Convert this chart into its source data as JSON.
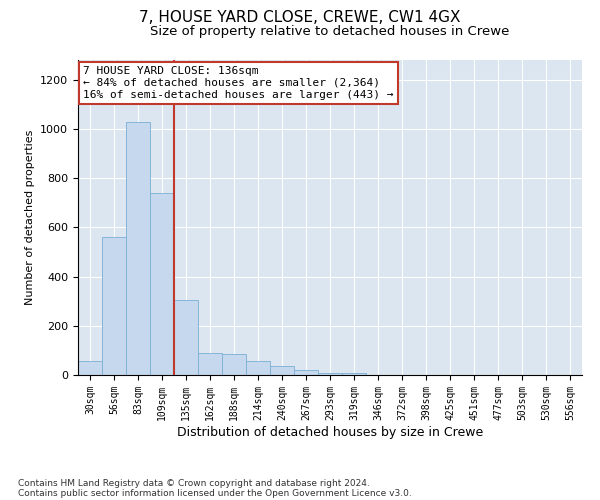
{
  "title1": "7, HOUSE YARD CLOSE, CREWE, CW1 4GX",
  "title2": "Size of property relative to detached houses in Crewe",
  "xlabel": "Distribution of detached houses by size in Crewe",
  "ylabel": "Number of detached properties",
  "categories": [
    "30sqm",
    "56sqm",
    "83sqm",
    "109sqm",
    "135sqm",
    "162sqm",
    "188sqm",
    "214sqm",
    "240sqm",
    "267sqm",
    "293sqm",
    "319sqm",
    "346sqm",
    "372sqm",
    "398sqm",
    "425sqm",
    "451sqm",
    "477sqm",
    "503sqm",
    "530sqm",
    "556sqm"
  ],
  "values": [
    55,
    560,
    1030,
    740,
    305,
    90,
    85,
    55,
    35,
    20,
    10,
    10,
    0,
    0,
    0,
    0,
    0,
    0,
    0,
    0,
    0
  ],
  "bar_color": "#c5d8ee",
  "bar_edge_color": "#7bafd4",
  "vline_x": 3.5,
  "vline_color": "#c0392b",
  "annotation_text": "7 HOUSE YARD CLOSE: 136sqm\n← 84% of detached houses are smaller (2,364)\n16% of semi-detached houses are larger (443) →",
  "annotation_box_color": "white",
  "annotation_box_edge_color": "#c0392b",
  "ylim": [
    0,
    1280
  ],
  "yticks": [
    0,
    200,
    400,
    600,
    800,
    1000,
    1200
  ],
  "footer1": "Contains HM Land Registry data © Crown copyright and database right 2024.",
  "footer2": "Contains public sector information licensed under the Open Government Licence v3.0.",
  "bg_color": "#dce6f0",
  "title1_fontsize": 11,
  "title2_fontsize": 9.5,
  "xlabel_fontsize": 9,
  "ylabel_fontsize": 8,
  "annotation_fontsize": 8
}
